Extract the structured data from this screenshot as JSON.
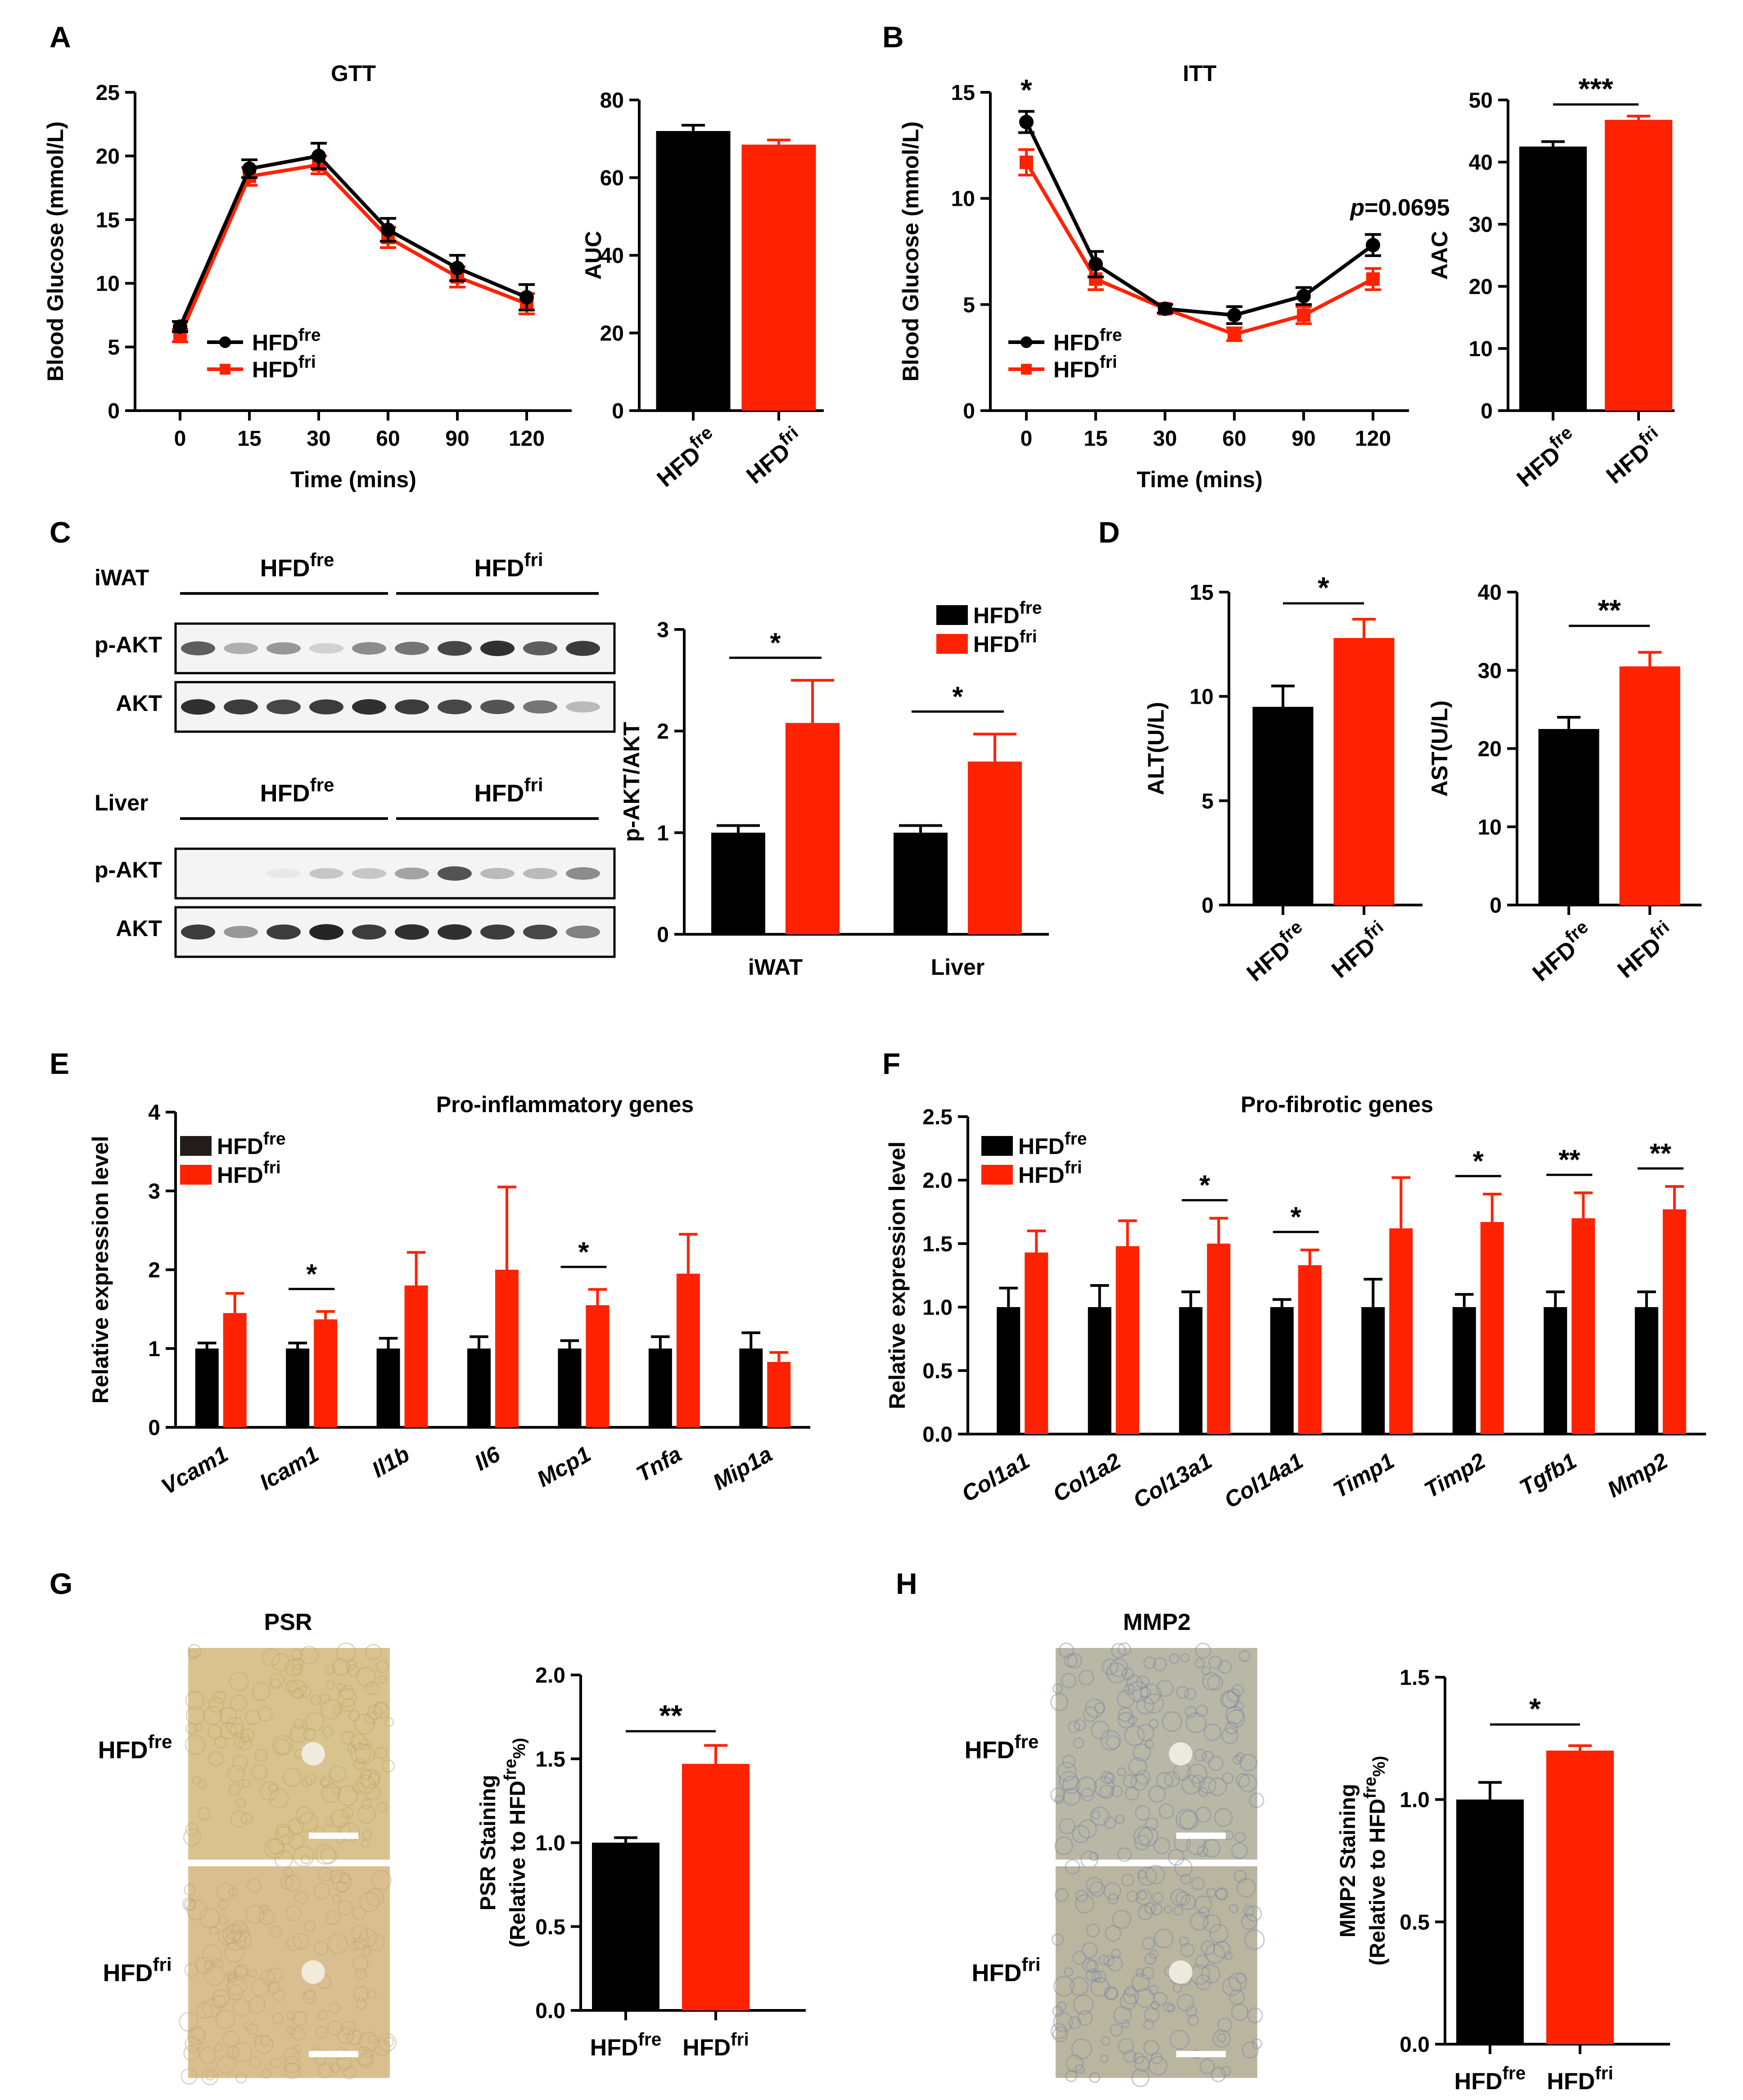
{
  "colors": {
    "fre": "#000000",
    "fri": "#ff2200",
    "blot_bg": "#f4f4f4",
    "psr_tissue": "#d8c38e",
    "mmp2_tissue": "#b9b7a6"
  },
  "groups": {
    "fre_base": "HFD",
    "fre_sup": "fre",
    "fri_base": "HFD",
    "fri_sup": "fri"
  },
  "panel_letters": [
    "A",
    "B",
    "C",
    "D",
    "E",
    "F",
    "G",
    "H"
  ],
  "blots": {
    "tissues": [
      "iWAT",
      "Liver"
    ],
    "rows": [
      "p-AKT",
      "AKT"
    ],
    "bands": {
      "iWAT": {
        "p-AKT": [
          0.7,
          0.35,
          0.45,
          0.2,
          0.5,
          0.6,
          0.8,
          0.9,
          0.7,
          0.85
        ],
        "AKT": [
          0.9,
          0.85,
          0.8,
          0.85,
          0.9,
          0.85,
          0.8,
          0.75,
          0.6,
          0.3
        ]
      },
      "Liver": {
        "p-AKT": [
          0.05,
          0.05,
          0.1,
          0.25,
          0.25,
          0.4,
          0.75,
          0.3,
          0.3,
          0.5
        ],
        "AKT": [
          0.85,
          0.45,
          0.85,
          0.95,
          0.85,
          0.9,
          0.9,
          0.85,
          0.8,
          0.55
        ]
      }
    }
  },
  "histology": {
    "stains": [
      "PSR",
      "MMP2"
    ],
    "rows": [
      "HFD fre",
      "HFD fri"
    ]
  },
  "chart_data": [
    {
      "id": "GTT",
      "type": "line",
      "title": "GTT",
      "xlabel": "Time (mins)",
      "ylabel": "Blood Glucose (mmol/L)",
      "categories": [
        "0",
        "15",
        "30",
        "60",
        "90",
        "120"
      ],
      "ylim": [
        0,
        25
      ],
      "yticks": [
        0,
        5,
        10,
        15,
        20,
        25
      ],
      "series": [
        {
          "name": "HFD fre",
          "values": [
            6.6,
            19.0,
            20.0,
            14.2,
            11.2,
            8.9
          ],
          "errors": [
            0.4,
            0.7,
            1.0,
            0.9,
            1.0,
            1.0
          ]
        },
        {
          "name": "HFD fri",
          "values": [
            5.9,
            18.4,
            19.3,
            13.6,
            10.5,
            8.4
          ],
          "errors": [
            0.5,
            0.7,
            0.7,
            0.8,
            0.8,
            0.8
          ]
        }
      ],
      "annotations": []
    },
    {
      "id": "GTT_AUC",
      "type": "bar",
      "ylabel": "AUC",
      "categories": [
        "HFD fre",
        "HFD fri"
      ],
      "values": [
        72,
        68.5
      ],
      "errors": [
        1.5,
        1.2
      ],
      "ylim": [
        0,
        80
      ],
      "yticks": [
        0,
        20,
        40,
        60,
        80
      ],
      "significance": []
    },
    {
      "id": "ITT",
      "type": "line",
      "title": "ITT",
      "xlabel": "Time (mins)",
      "ylabel": "Blood Glucose (mmol/L)",
      "categories": [
        "0",
        "15",
        "30",
        "60",
        "90",
        "120"
      ],
      "ylim": [
        0,
        15
      ],
      "yticks": [
        0,
        5,
        10,
        15
      ],
      "series": [
        {
          "name": "HFD fre",
          "values": [
            13.6,
            6.9,
            4.8,
            4.5,
            5.4,
            7.8
          ],
          "errors": [
            0.5,
            0.6,
            0.2,
            0.4,
            0.4,
            0.5
          ]
        },
        {
          "name": "HFD fri",
          "values": [
            11.7,
            6.2,
            4.8,
            3.6,
            4.5,
            6.2
          ],
          "errors": [
            0.6,
            0.5,
            0.2,
            0.3,
            0.4,
            0.5
          ]
        }
      ],
      "annotations": [
        {
          "text": "*",
          "at": "0"
        },
        {
          "text": "p=0.0695",
          "at": "120"
        }
      ]
    },
    {
      "id": "ITT_AAC",
      "type": "bar",
      "ylabel": "AAC",
      "categories": [
        "HFD fre",
        "HFD fri"
      ],
      "values": [
        42.5,
        46.8
      ],
      "errors": [
        0.8,
        0.6
      ],
      "ylim": [
        0,
        50
      ],
      "yticks": [
        0,
        10,
        20,
        30,
        40,
        50
      ],
      "significance": [
        {
          "pair": [
            0,
            1
          ],
          "text": "***"
        }
      ]
    },
    {
      "id": "pAKT",
      "type": "bar",
      "ylabel": "p-AKT/AKT",
      "categories": [
        "iWAT",
        "Liver"
      ],
      "ylim": [
        0,
        3
      ],
      "yticks": [
        0,
        1,
        2,
        3
      ],
      "series": [
        {
          "name": "HFD fre",
          "values": [
            1.0,
            1.0
          ],
          "errors": [
            0.07,
            0.07
          ]
        },
        {
          "name": "HFD fri",
          "values": [
            2.08,
            1.7
          ],
          "errors": [
            0.42,
            0.27
          ]
        }
      ],
      "significance": [
        {
          "category": 0,
          "text": "*"
        },
        {
          "category": 1,
          "text": "*"
        }
      ]
    },
    {
      "id": "ALT",
      "type": "bar",
      "ylabel": "ALT(U/L)",
      "categories": [
        "HFD fre",
        "HFD fri"
      ],
      "values": [
        9.5,
        12.8
      ],
      "errors": [
        1.0,
        0.9
      ],
      "ylim": [
        0,
        15
      ],
      "yticks": [
        0,
        5,
        10,
        15
      ],
      "significance": [
        {
          "pair": [
            0,
            1
          ],
          "text": "*"
        }
      ]
    },
    {
      "id": "AST",
      "type": "bar",
      "ylabel": "AST(U/L)",
      "categories": [
        "HFD fre",
        "HFD fri"
      ],
      "values": [
        22.5,
        30.5
      ],
      "errors": [
        1.5,
        1.8
      ],
      "ylim": [
        0,
        40
      ],
      "yticks": [
        0,
        10,
        20,
        30,
        40
      ],
      "significance": [
        {
          "pair": [
            0,
            1
          ],
          "text": "**"
        }
      ]
    },
    {
      "id": "ProInflam",
      "type": "bar",
      "title": "Pro-inflammatory genes",
      "ylabel": "Relative expression level",
      "categories": [
        "Vcam1",
        "Icam1",
        "Il1b",
        "Il6",
        "Mcp1",
        "Tnfa",
        "Mip1a"
      ],
      "ylim": [
        0,
        4
      ],
      "yticks": [
        0,
        1,
        2,
        3,
        4
      ],
      "series": [
        {
          "name": "HFD fre",
          "values": [
            1.0,
            1.0,
            1.0,
            1.0,
            1.0,
            1.0,
            1.0
          ],
          "errors": [
            0.07,
            0.07,
            0.13,
            0.15,
            0.1,
            0.15,
            0.2
          ]
        },
        {
          "name": "HFD fri",
          "values": [
            1.45,
            1.37,
            1.8,
            2.0,
            1.55,
            1.95,
            0.83
          ],
          "errors": [
            0.25,
            0.1,
            0.42,
            1.05,
            0.2,
            0.5,
            0.12
          ]
        }
      ],
      "significance": [
        {
          "category": 1,
          "text": "*"
        },
        {
          "category": 4,
          "text": "*"
        }
      ]
    },
    {
      "id": "ProFib",
      "type": "bar",
      "title": "Pro-fibrotic genes",
      "ylabel": "Relative expression level",
      "categories": [
        "Col1a1",
        "Col1a2",
        "Col13a1",
        "Col14a1",
        "Timp1",
        "Timp2",
        "Tgfb1",
        "Mmp2"
      ],
      "ylim": [
        0,
        2.5
      ],
      "yticks": [
        0.0,
        0.5,
        1.0,
        1.5,
        2.0,
        2.5
      ],
      "series": [
        {
          "name": "HFD fre",
          "values": [
            1.0,
            1.0,
            1.0,
            1.0,
            1.0,
            1.0,
            1.0,
            1.0
          ],
          "errors": [
            0.15,
            0.17,
            0.12,
            0.06,
            0.22,
            0.1,
            0.12,
            0.12
          ]
        },
        {
          "name": "HFD fri",
          "values": [
            1.43,
            1.48,
            1.5,
            1.33,
            1.62,
            1.67,
            1.7,
            1.77
          ],
          "errors": [
            0.17,
            0.2,
            0.2,
            0.12,
            0.4,
            0.22,
            0.2,
            0.18
          ]
        }
      ],
      "significance": [
        {
          "category": 2,
          "text": "*"
        },
        {
          "category": 3,
          "text": "*"
        },
        {
          "category": 5,
          "text": "*"
        },
        {
          "category": 6,
          "text": "**"
        },
        {
          "category": 7,
          "text": "**"
        }
      ]
    },
    {
      "id": "PSR_quant",
      "type": "bar",
      "ylabel": "PSR Staining",
      "ylabel2": "(Relative to HFD fre%)",
      "categories": [
        "HFD fre",
        "HFD fri"
      ],
      "values": [
        1.0,
        1.47
      ],
      "errors": [
        0.03,
        0.11
      ],
      "ylim": [
        0,
        2.0
      ],
      "yticks": [
        0.0,
        0.5,
        1.0,
        1.5,
        2.0
      ],
      "significance": [
        {
          "pair": [
            0,
            1
          ],
          "text": "**"
        }
      ]
    },
    {
      "id": "MMP2_quant",
      "type": "bar",
      "ylabel": "MMP2 Staining",
      "ylabel2": "(Relative to HFD fre%)",
      "categories": [
        "HFD fre",
        "HFD fri"
      ],
      "values": [
        1.0,
        1.2
      ],
      "errors": [
        0.07,
        0.02
      ],
      "ylim": [
        0,
        1.5
      ],
      "yticks": [
        0.0,
        0.5,
        1.0,
        1.5
      ],
      "significance": [
        {
          "pair": [
            0,
            1
          ],
          "text": "*"
        }
      ]
    }
  ]
}
